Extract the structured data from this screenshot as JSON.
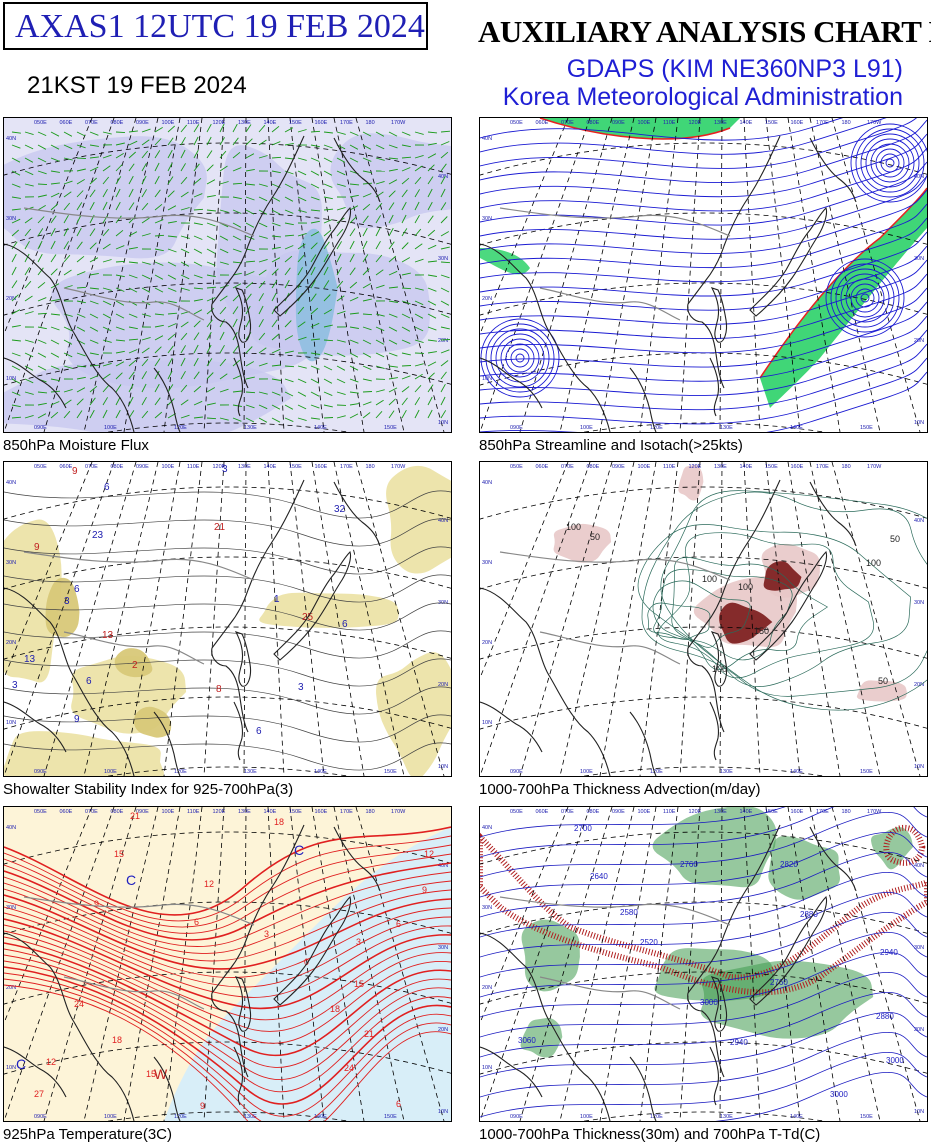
{
  "header": {
    "product_code": "AXAS1  12UTC 19 FEB 2024",
    "local_time": "21KST 19 FEB 2024",
    "title": "AUXILIARY ANALYSIS CHART  I",
    "model": "GDAPS (KIM NE360NP3 L91)",
    "agency": "Korea Meteorological Administration"
  },
  "panels": [
    {
      "id": "moisture",
      "caption": "850hPa Moisture Flux"
    },
    {
      "id": "streamline",
      "caption": "850hPa Streamline and Isotach(>25kts)"
    },
    {
      "id": "ssi",
      "caption": "Showalter Stability Index for 925-700hPa(3)"
    },
    {
      "id": "advection",
      "caption": "1000-700hPa Thickness Advection(m/day)"
    },
    {
      "id": "temp925",
      "caption": "925hPa Temperature(3C)"
    },
    {
      "id": "thickness",
      "caption": "1000-700hPa Thickness(30m) and 700hPa T-Td(C)"
    }
  ],
  "grid_labels": {
    "lon_top": [
      "050E",
      "060E",
      "070E",
      "080E",
      "090E",
      "100E",
      "110E",
      "120E",
      "130E",
      "140E",
      "150E",
      "160E",
      "170E",
      "180",
      "170W"
    ],
    "lon_bottom": [
      "090E",
      "100E",
      "120E",
      "130E",
      "140E",
      "150E"
    ],
    "lat_left": [
      "40N",
      "30N",
      "20N",
      "10N"
    ],
    "lat_right": [
      "40N",
      "30N",
      "20N",
      "10N"
    ]
  },
  "contour_labels": {
    "ssi": [
      "9",
      "6",
      "23",
      "21",
      "3",
      "32",
      "9",
      "6",
      "13",
      "25",
      "6",
      "3",
      "2",
      "6",
      "3",
      "13",
      "1",
      "6",
      "8",
      "3",
      "9"
    ],
    "advection": [
      "100",
      "50",
      "100",
      "150",
      "100",
      "50",
      "100",
      "50",
      "100"
    ],
    "temp925": [
      "21",
      "18",
      "15",
      "12",
      "9",
      "6",
      "3",
      "0",
      "3",
      "6",
      "9",
      "12",
      "15",
      "18",
      "21",
      "24",
      "6",
      "9",
      "12",
      "15",
      "18",
      "24",
      "27"
    ],
    "thickness": [
      "2700",
      "2640",
      "2580",
      "2520",
      "2760",
      "2820",
      "2880",
      "2940",
      "3000",
      "2760",
      "2880",
      "3000",
      "3060",
      "2940",
      "3000"
    ]
  },
  "colors": {
    "title_blue": "#1f1fb4",
    "agency_blue": "#1f1fd4",
    "moisture_fill": "#c8c8f0",
    "wind_barb": "#1a9a1a",
    "streamline": "#1a1ad2",
    "isotach_green": "#1fcf5f",
    "isotach_red": "#e82020",
    "ssi_fill": "#ece3a8",
    "ssi_fill_dark": "#d8c878",
    "advection_warm": "#7a1a1a",
    "temp_red": "#e02020",
    "temp_cold_fill": "#d8eef8",
    "temp_warm_fill": "#fdf4d8",
    "thickness_green": "#3f9a4f",
    "thickness_hatch": "#b02020"
  }
}
